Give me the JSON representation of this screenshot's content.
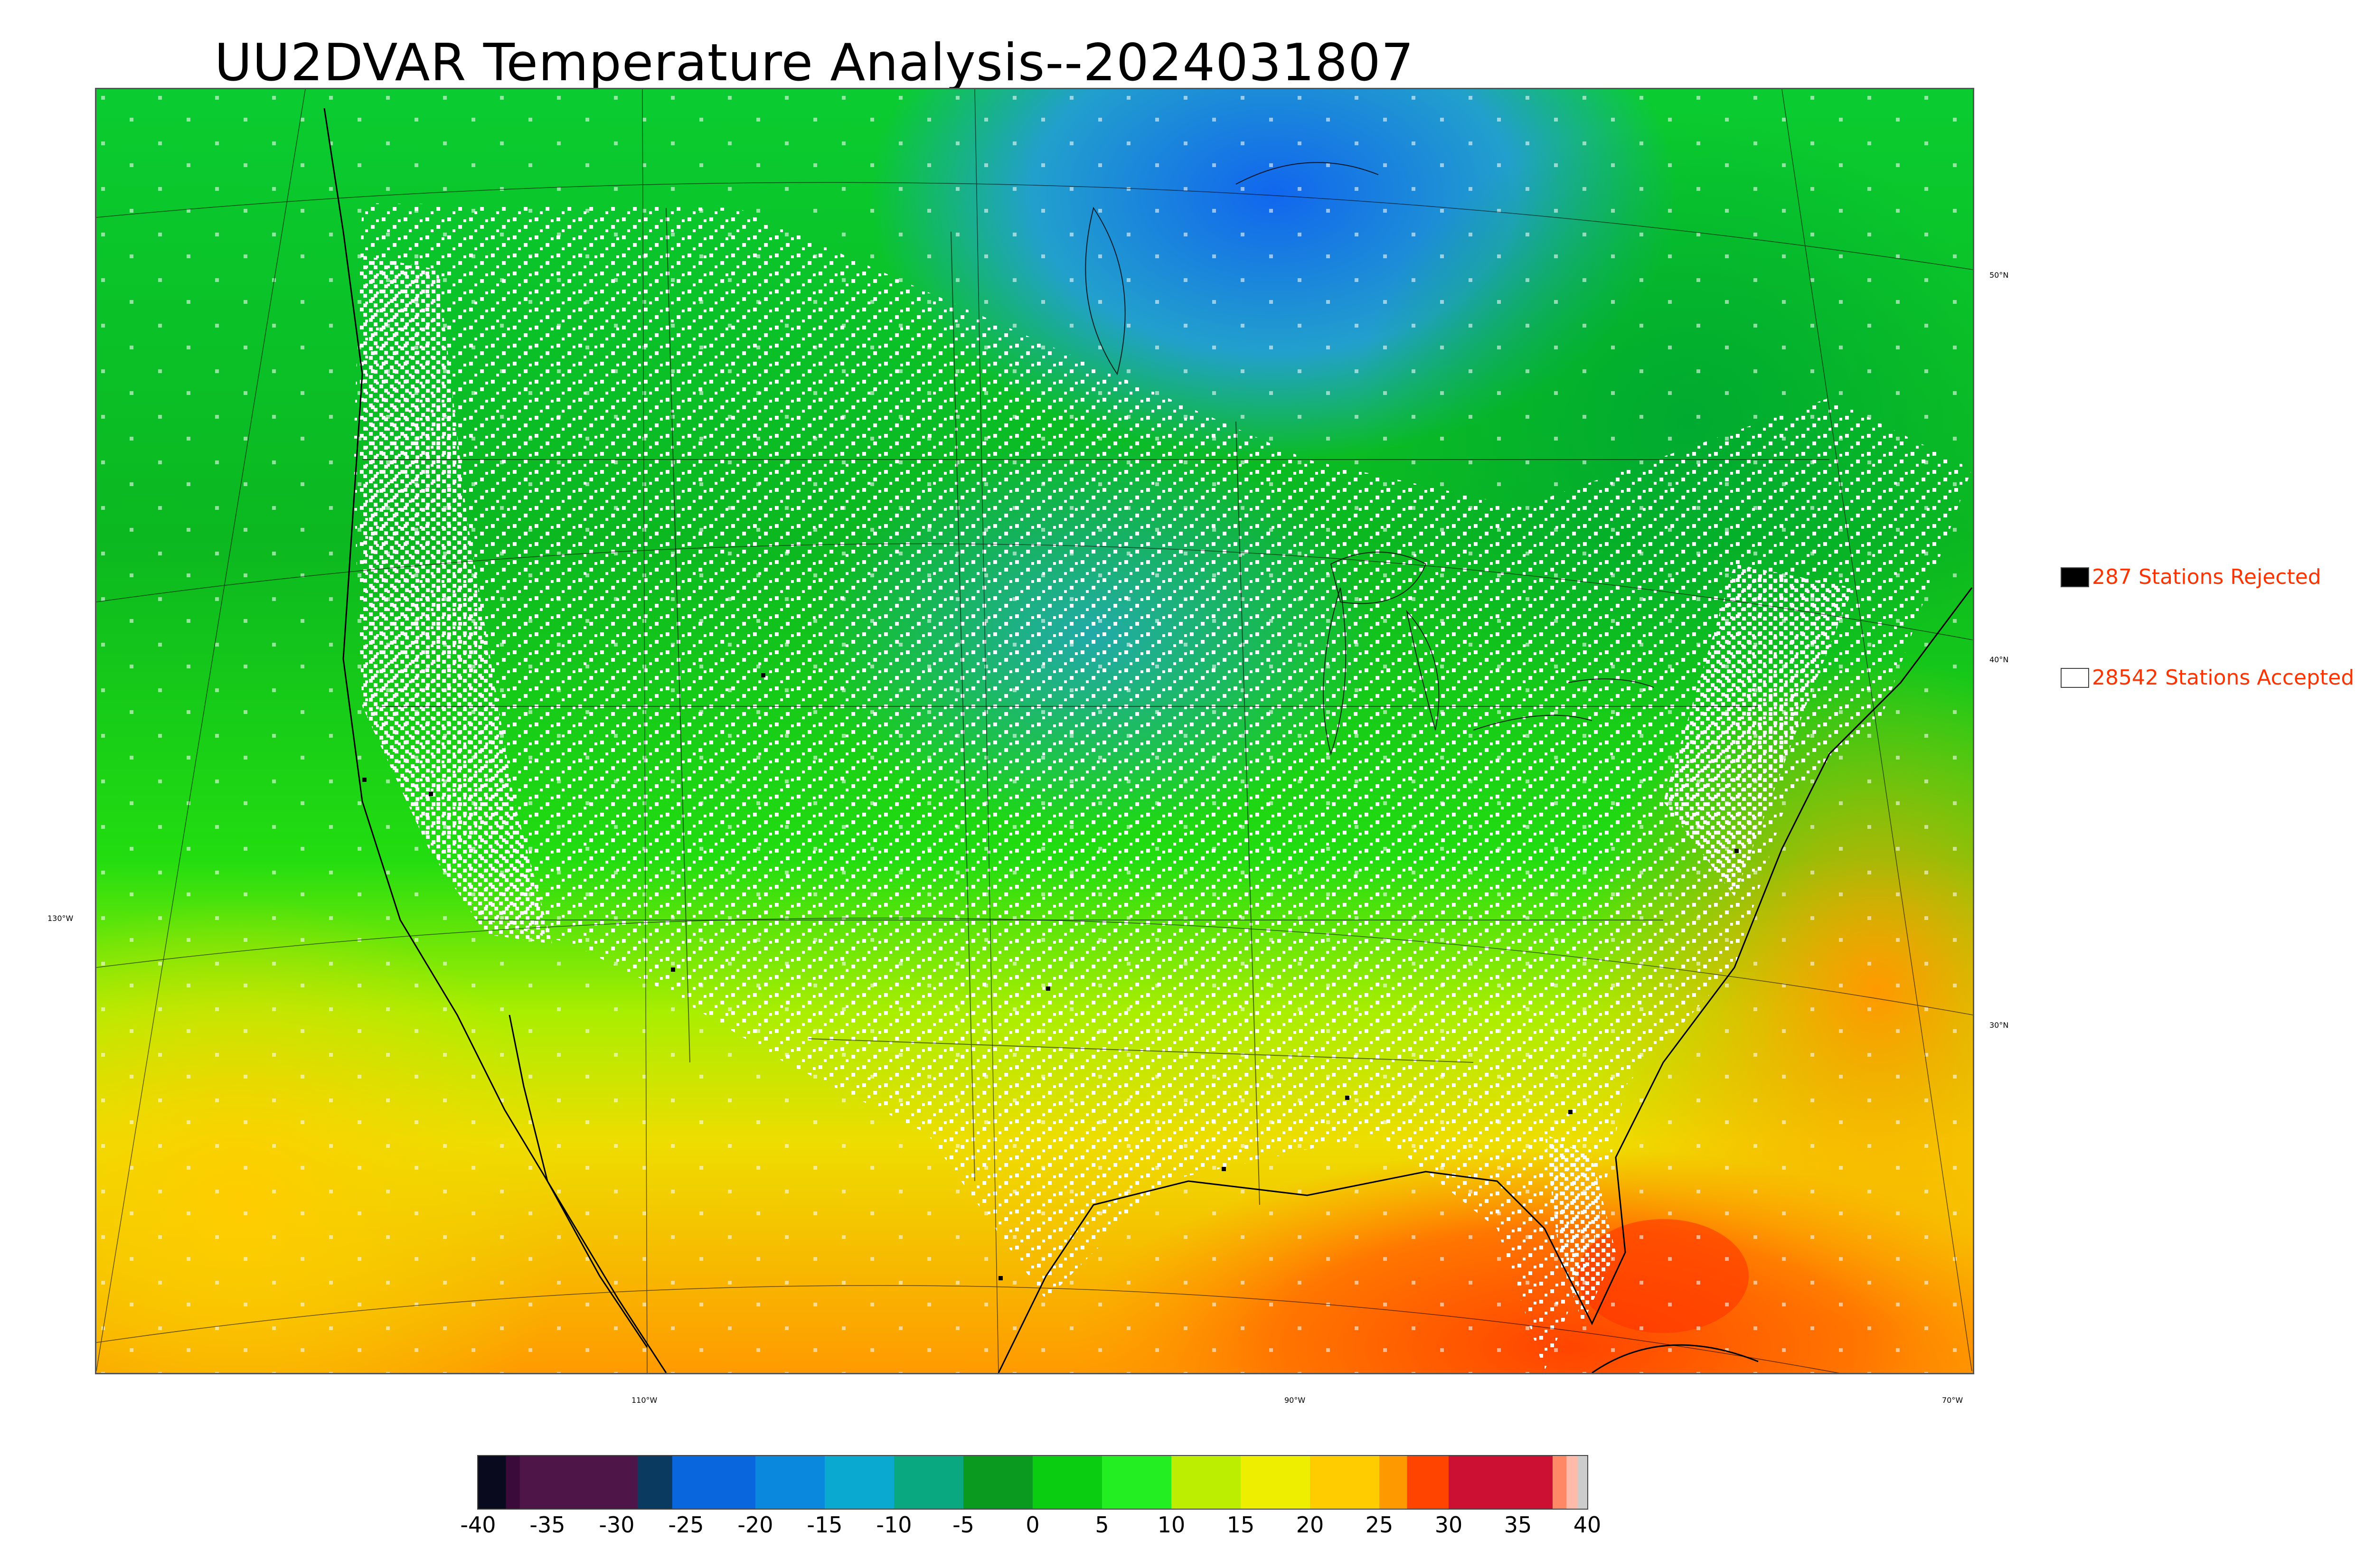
{
  "title": "UU2DVAR Temperature Analysis--2024031807",
  "legend": {
    "rejected": {
      "label": "287 Stations Rejected",
      "swatch": "#000000"
    },
    "accepted": {
      "label": "28542 Stations Accepted",
      "swatch": "#ffffff"
    },
    "text_color": "#ff3300"
  },
  "map": {
    "lat_labels": [
      "50°N",
      "40°N",
      "30°N"
    ],
    "lon_labels": [
      "130°W",
      "110°W",
      "90°W",
      "70°W"
    ],
    "land_outline_color": "#000000",
    "station_marker_color": "#ffffff"
  },
  "colorbar": {
    "ticks": [
      "-40",
      "-35",
      "-30",
      "-25",
      "-20",
      "-15",
      "-10",
      "-5",
      "0",
      "5",
      "10",
      "15",
      "20",
      "25",
      "30",
      "35",
      "40"
    ],
    "range": [
      -40,
      40
    ],
    "colors": [
      {
        "from": -40,
        "to": -38,
        "color": "#0a0a1e"
      },
      {
        "from": -38,
        "to": -37,
        "color": "#3a0a3a"
      },
      {
        "from": -37,
        "to": -28.5,
        "color": "#4e1648"
      },
      {
        "from": -28.5,
        "to": -26,
        "color": "#0a3a60"
      },
      {
        "from": -26,
        "to": -20,
        "color": "#0a66dd"
      },
      {
        "from": -20,
        "to": -15,
        "color": "#0a88dd"
      },
      {
        "from": -15,
        "to": -10,
        "color": "#0aaad0"
      },
      {
        "from": -10,
        "to": -5,
        "color": "#0aa880"
      },
      {
        "from": -5,
        "to": 0,
        "color": "#0a9a20"
      },
      {
        "from": 0,
        "to": 5,
        "color": "#0acc10"
      },
      {
        "from": 5,
        "to": 10,
        "color": "#22ee22"
      },
      {
        "from": 10,
        "to": 15,
        "color": "#bbee00"
      },
      {
        "from": 15,
        "to": 20,
        "color": "#eeee00"
      },
      {
        "from": 20,
        "to": 25,
        "color": "#ffcc00"
      },
      {
        "from": 25,
        "to": 27,
        "color": "#ff9900"
      },
      {
        "from": 27,
        "to": 30,
        "color": "#ff4400"
      },
      {
        "from": 30,
        "to": 37.5,
        "color": "#cc1033"
      },
      {
        "from": 37.5,
        "to": 38.5,
        "color": "#ff8866"
      },
      {
        "from": 38.5,
        "to": 39.3,
        "color": "#ffbbaa"
      },
      {
        "from": 39.3,
        "to": 40,
        "color": "#cccccc"
      }
    ]
  }
}
